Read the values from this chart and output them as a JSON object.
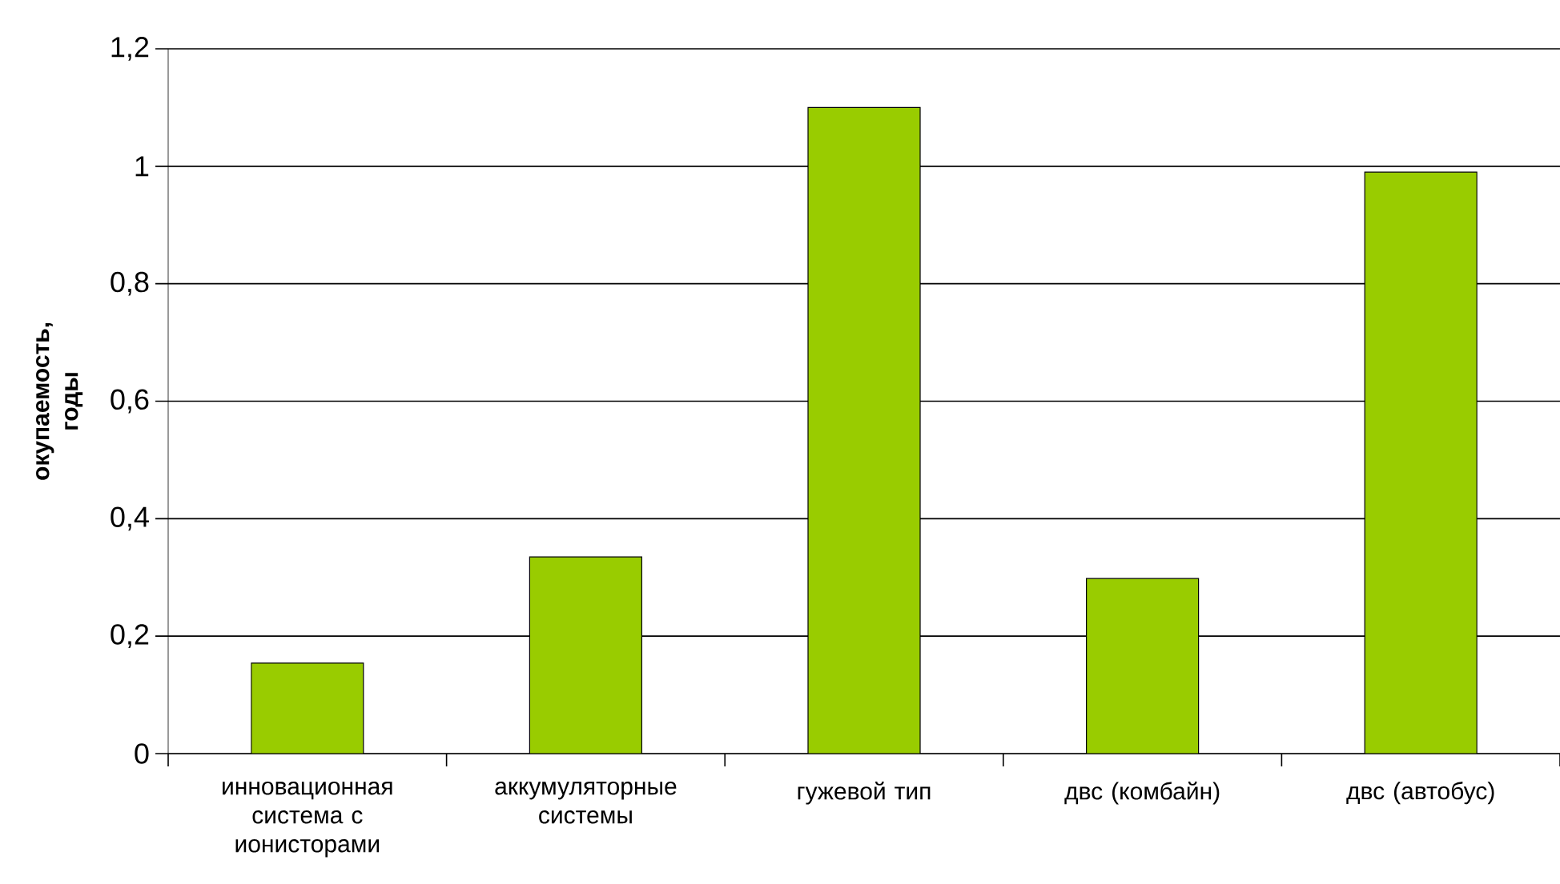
{
  "chart_data": {
    "type": "bar",
    "ylabel": "окупаемость, годы",
    "categories": [
      "инновационная система с ионисторами",
      "аккумуляторные системы",
      "гужевой тип",
      "двс (комбайн)",
      "двс (автобус)"
    ],
    "values": [
      0.154,
      0.335,
      1.1,
      0.298,
      0.99
    ],
    "color": "#99cc00",
    "ylim": [
      0,
      1.2
    ],
    "yticks": [
      0,
      {
        "value": 0.2,
        "label": "0,2"
      },
      {
        "value": 0.4,
        "label": "0,4"
      },
      {
        "value": 0.6,
        "label": "0,6"
      },
      {
        "value": 0.8,
        "label": "0,8"
      },
      1,
      {
        "value": 1.2,
        "label": "1,2"
      }
    ],
    "grid": "y"
  }
}
